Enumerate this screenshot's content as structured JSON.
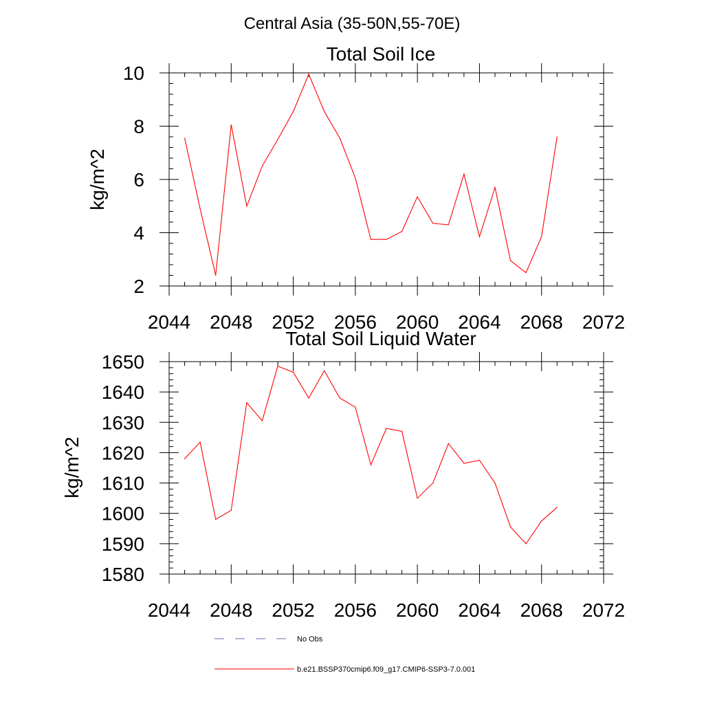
{
  "figure": {
    "suptitle": "Central Asia (35-50N,55-70E)"
  },
  "legend": {
    "entries": [
      {
        "label": "No Obs",
        "color": "#6a6ab0",
        "style": "dashed"
      },
      {
        "label": "b.e21.BSSP370cmip6.f09_g17.CMIP6-SSP3-7.0.001",
        "color": "#ff0000",
        "style": "solid"
      }
    ]
  },
  "chart_data": [
    {
      "type": "line",
      "title": "Total Soil Ice",
      "xlabel": "",
      "ylabel": "kg/m^2",
      "xlim": [
        2044,
        2072
      ],
      "ylim": [
        2,
        10
      ],
      "xticks": [
        2044,
        2048,
        2052,
        2056,
        2060,
        2064,
        2068,
        2072
      ],
      "yticks": [
        2,
        4,
        6,
        8,
        10
      ],
      "series": [
        {
          "color": "#ff0000",
          "x": [
            2045,
            2046,
            2047,
            2048,
            2049,
            2050,
            2051,
            2052,
            2053,
            2054,
            2055,
            2056,
            2057,
            2058,
            2059,
            2060,
            2061,
            2062,
            2063,
            2064,
            2065,
            2066,
            2067,
            2068,
            2069
          ],
          "y": [
            7.55,
            4.9,
            2.4,
            8.05,
            5.0,
            6.5,
            7.5,
            8.55,
            9.95,
            8.55,
            7.55,
            6.05,
            3.75,
            3.75,
            4.05,
            5.35,
            4.35,
            4.3,
            6.2,
            3.85,
            5.7,
            2.95,
            2.5,
            3.85,
            7.6
          ]
        }
      ]
    },
    {
      "type": "line",
      "title": "Total Soil Liquid Water",
      "xlabel": "",
      "ylabel": "kg/m^2",
      "xlim": [
        2044,
        2072
      ],
      "ylim": [
        1580,
        1650
      ],
      "xticks": [
        2044,
        2048,
        2052,
        2056,
        2060,
        2064,
        2068,
        2072
      ],
      "yticks": [
        1580,
        1590,
        1600,
        1610,
        1620,
        1630,
        1640,
        1650
      ],
      "series": [
        {
          "color": "#ff0000",
          "x": [
            2045,
            2046,
            2047,
            2048,
            2049,
            2050,
            2051,
            2052,
            2053,
            2054,
            2055,
            2056,
            2057,
            2058,
            2059,
            2060,
            2061,
            2062,
            2063,
            2064,
            2065,
            2066,
            2067,
            2068,
            2069
          ],
          "y": [
            1618,
            1623.5,
            1598,
            1601,
            1636.5,
            1630.5,
            1648.5,
            1646.5,
            1638,
            1647,
            1638,
            1635,
            1616,
            1628,
            1627,
            1605,
            1610,
            1623,
            1616.5,
            1617.5,
            1610,
            1595.5,
            1590,
            1597.5,
            1602
          ]
        }
      ]
    }
  ]
}
